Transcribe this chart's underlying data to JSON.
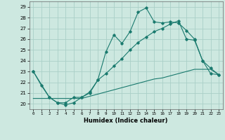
{
  "xlabel": "Humidex (Indice chaleur)",
  "xlim": [
    -0.5,
    23.5
  ],
  "ylim": [
    19.5,
    29.5
  ],
  "yticks": [
    20,
    21,
    22,
    23,
    24,
    25,
    26,
    27,
    28,
    29
  ],
  "xticks": [
    0,
    1,
    2,
    3,
    4,
    5,
    6,
    7,
    8,
    9,
    10,
    11,
    12,
    13,
    14,
    15,
    16,
    17,
    18,
    19,
    20,
    21,
    22,
    23
  ],
  "background_color": "#cde8e0",
  "grid_color": "#aacfc7",
  "line_color": "#1a7a6e",
  "line1_x": [
    0,
    1,
    2,
    3,
    4,
    5,
    6,
    7,
    8,
    9,
    10,
    11,
    12,
    13,
    14,
    15,
    16,
    17,
    18,
    19,
    20,
    21,
    22,
    23
  ],
  "line1_y": [
    23.0,
    21.7,
    20.6,
    20.1,
    20.1,
    20.6,
    20.6,
    21.1,
    22.2,
    24.8,
    26.4,
    25.6,
    26.7,
    28.5,
    28.9,
    27.6,
    27.5,
    27.6,
    27.5,
    26.8,
    26.0,
    24.0,
    23.3,
    22.7
  ],
  "line2_x": [
    0,
    2,
    3,
    4,
    5,
    6,
    7,
    8,
    9,
    10,
    11,
    12,
    13,
    14,
    15,
    16,
    17,
    18,
    19,
    20,
    21,
    22,
    23
  ],
  "line2_y": [
    23.0,
    20.6,
    20.1,
    19.9,
    20.1,
    20.6,
    21.0,
    22.2,
    22.8,
    23.5,
    24.2,
    25.0,
    25.7,
    26.2,
    26.7,
    27.0,
    27.4,
    27.7,
    26.0,
    25.9,
    24.0,
    22.8,
    22.7
  ],
  "line3_x": [
    0,
    1,
    2,
    3,
    4,
    5,
    6,
    7,
    8,
    9,
    10,
    11,
    12,
    13,
    14,
    15,
    16,
    17,
    18,
    19,
    20,
    21,
    22,
    23
  ],
  "line3_y": [
    20.5,
    20.5,
    20.5,
    20.5,
    20.5,
    20.5,
    20.5,
    20.7,
    20.9,
    21.1,
    21.3,
    21.5,
    21.7,
    21.9,
    22.1,
    22.3,
    22.4,
    22.6,
    22.8,
    23.0,
    23.2,
    23.2,
    23.2,
    22.7
  ]
}
